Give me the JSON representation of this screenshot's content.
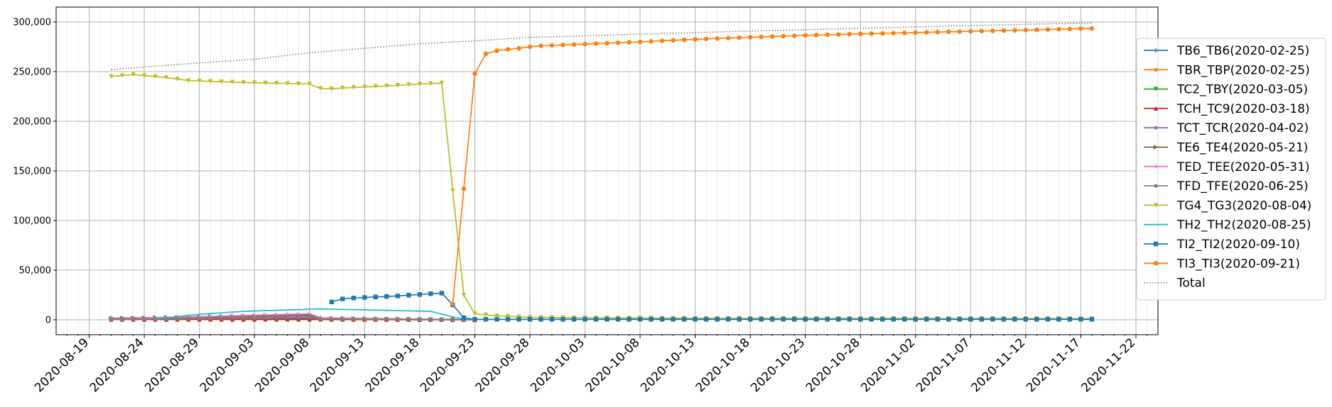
{
  "chart_data": {
    "type": "line",
    "title": "",
    "xlabel": "",
    "ylabel": "",
    "x_range": [
      "2020-08-16",
      "2020-11-24"
    ],
    "ylim": [
      -15000,
      315000
    ],
    "y_ticks": [
      0,
      50000,
      100000,
      150000,
      200000,
      250000,
      300000
    ],
    "y_tick_labels": [
      "0",
      "50,000",
      "100,000",
      "150,000",
      "200,000",
      "250,000",
      "300,000"
    ],
    "x_ticks": [
      "2020-08-19",
      "2020-08-24",
      "2020-08-29",
      "2020-09-03",
      "2020-09-08",
      "2020-09-13",
      "2020-09-18",
      "2020-09-23",
      "2020-09-28",
      "2020-10-03",
      "2020-10-08",
      "2020-10-13",
      "2020-10-18",
      "2020-10-23",
      "2020-10-28",
      "2020-11-02",
      "2020-11-07",
      "2020-11-12",
      "2020-11-17",
      "2020-11-22"
    ],
    "grid": "on",
    "legend_position": "right",
    "series": [
      {
        "name": "TB6_TB6(2020-02-25)",
        "color": "#1f77b4",
        "marker": "plus",
        "start": "2020-08-21",
        "end": "2020-09-23",
        "points": [
          [
            "2020-08-21",
            1500
          ],
          [
            "2020-09-08",
            1500
          ],
          [
            "2020-09-23",
            0
          ]
        ]
      },
      {
        "name": "TBR_TBP(2020-02-25)",
        "color": "#ff7f0e",
        "marker": "point",
        "start": "2020-08-21",
        "end": "2020-09-23",
        "points": [
          [
            "2020-08-21",
            1000
          ],
          [
            "2020-09-23",
            0
          ]
        ]
      },
      {
        "name": "TC2_TBY(2020-03-05)",
        "color": "#2ca02c",
        "marker": "tri_down",
        "start": "2020-08-21",
        "end": "2020-09-23",
        "points": [
          [
            "2020-08-21",
            500
          ],
          [
            "2020-09-23",
            0
          ]
        ]
      },
      {
        "name": "TCH_TC9(2020-03-18)",
        "color": "#d62728",
        "marker": "tri_up",
        "start": "2020-08-21",
        "end": "2020-09-23",
        "points": [
          [
            "2020-08-21",
            300
          ],
          [
            "2020-09-08",
            500
          ],
          [
            "2020-09-23",
            0
          ]
        ]
      },
      {
        "name": "TCT_TCR(2020-04-02)",
        "color": "#9467bd",
        "marker": "diamond",
        "start": "2020-08-21",
        "end": "2020-09-23",
        "points": [
          [
            "2020-08-21",
            1000
          ],
          [
            "2020-09-08",
            4000
          ],
          [
            "2020-09-09",
            1500
          ],
          [
            "2020-09-23",
            0
          ]
        ]
      },
      {
        "name": "TE6_TE4(2020-05-21)",
        "color": "#8c564b",
        "marker": "tri_right",
        "start": "2020-08-21",
        "end": "2020-09-23",
        "points": [
          [
            "2020-08-21",
            1500
          ],
          [
            "2020-09-08",
            5000
          ],
          [
            "2020-09-09",
            1500
          ],
          [
            "2020-09-23",
            0
          ]
        ]
      },
      {
        "name": "TED_TEE(2020-05-31)",
        "color": "#e377c2",
        "marker": "plus",
        "start": "2020-08-21",
        "end": "2020-09-23",
        "points": [
          [
            "2020-08-21",
            1000
          ],
          [
            "2020-09-08",
            6000
          ],
          [
            "2020-09-09",
            2000
          ],
          [
            "2020-09-23",
            0
          ]
        ]
      },
      {
        "name": "TFD_TFE(2020-06-25)",
        "color": "#7f7f7f",
        "marker": "point",
        "start": "2020-08-21",
        "end": "2020-09-23",
        "points": [
          [
            "2020-08-21",
            500
          ],
          [
            "2020-09-08",
            2500
          ],
          [
            "2020-09-09",
            1000
          ],
          [
            "2020-09-23",
            0
          ]
        ]
      },
      {
        "name": "TG4_TG3(2020-08-04)",
        "color": "#bcbd22",
        "marker": "tri_down",
        "start": "2020-08-21",
        "end": "2020-11-18",
        "points": [
          [
            "2020-08-21",
            245000
          ],
          [
            "2020-08-23",
            247000
          ],
          [
            "2020-08-26",
            244000
          ],
          [
            "2020-08-28",
            241000
          ],
          [
            "2020-09-02",
            239000
          ],
          [
            "2020-09-08",
            237500
          ],
          [
            "2020-09-09",
            233000
          ],
          [
            "2020-09-10",
            232500
          ],
          [
            "2020-09-11",
            233500
          ],
          [
            "2020-09-15",
            235500
          ],
          [
            "2020-09-18",
            237500
          ],
          [
            "2020-09-20",
            238500
          ],
          [
            "2020-09-21",
            130000
          ],
          [
            "2020-09-22",
            25000
          ],
          [
            "2020-09-23",
            6000
          ],
          [
            "2020-09-25",
            4000
          ],
          [
            "2020-09-28",
            2500
          ],
          [
            "2020-10-03",
            2000
          ],
          [
            "2020-10-13",
            1500
          ],
          [
            "2020-11-18",
            1200
          ]
        ]
      },
      {
        "name": "TH2_TH2(2020-08-25)",
        "color": "#17becf",
        "marker": "none",
        "start": "2020-08-25",
        "end": "2020-09-23",
        "points": [
          [
            "2020-08-25",
            1000
          ],
          [
            "2020-08-29",
            5500
          ],
          [
            "2020-09-02",
            8500
          ],
          [
            "2020-09-09",
            11000
          ],
          [
            "2020-09-13",
            10000
          ],
          [
            "2020-09-19",
            8500
          ],
          [
            "2020-09-21",
            3000
          ],
          [
            "2020-09-22",
            800
          ],
          [
            "2020-09-23",
            0
          ]
        ]
      },
      {
        "name": "TI2_TI2(2020-09-10)",
        "color": "#1f77b4",
        "marker": "square",
        "start": "2020-09-10",
        "end": "2020-11-18",
        "points": [
          [
            "2020-09-10",
            18000
          ],
          [
            "2020-09-11",
            21000
          ],
          [
            "2020-09-12",
            22000
          ],
          [
            "2020-09-13",
            22500
          ],
          [
            "2020-09-14",
            23000
          ],
          [
            "2020-09-15",
            23500
          ],
          [
            "2020-09-16",
            24000
          ],
          [
            "2020-09-17",
            24800
          ],
          [
            "2020-09-18",
            25500
          ],
          [
            "2020-09-19",
            26300
          ],
          [
            "2020-09-20",
            26800
          ],
          [
            "2020-09-21",
            15000
          ],
          [
            "2020-09-22",
            2000
          ],
          [
            "2020-09-23",
            500
          ],
          [
            "2020-11-18",
            500
          ]
        ]
      },
      {
        "name": "TI3_TI3(2020-09-21)",
        "color": "#ff7f0e",
        "marker": "hexagon",
        "start": "2020-09-21",
        "end": "2020-11-18",
        "points": [
          [
            "2020-09-21",
            16000
          ],
          [
            "2020-09-22",
            132000
          ],
          [
            "2020-09-23",
            248000
          ],
          [
            "2020-09-24",
            268000
          ],
          [
            "2020-09-25",
            271000
          ],
          [
            "2020-09-26",
            272500
          ],
          [
            "2020-09-27",
            273500
          ],
          [
            "2020-09-28",
            275000
          ],
          [
            "2020-09-29",
            276000
          ],
          [
            "2020-10-01",
            276800
          ],
          [
            "2020-10-03",
            277700
          ],
          [
            "2020-10-08",
            280000
          ],
          [
            "2020-10-13",
            282500
          ],
          [
            "2020-10-18",
            284600
          ],
          [
            "2020-10-23",
            286500
          ],
          [
            "2020-10-28",
            288000
          ],
          [
            "2020-11-02",
            289300
          ],
          [
            "2020-11-07",
            290600
          ],
          [
            "2020-11-12",
            291900
          ],
          [
            "2020-11-16",
            293000
          ],
          [
            "2020-11-18",
            293500
          ]
        ]
      },
      {
        "name": "Total",
        "color": "#7f7f7f",
        "marker": "none",
        "style": "dotted",
        "start": "2020-08-21",
        "end": "2020-11-18",
        "points": [
          [
            "2020-08-21",
            252000
          ],
          [
            "2020-08-28",
            258000
          ],
          [
            "2020-09-03",
            262500
          ],
          [
            "2020-09-08",
            269000
          ],
          [
            "2020-09-13",
            273500
          ],
          [
            "2020-09-18",
            278000
          ],
          [
            "2020-09-23",
            281000
          ],
          [
            "2020-09-28",
            284500
          ],
          [
            "2020-10-03",
            286000
          ],
          [
            "2020-10-08",
            287800
          ],
          [
            "2020-10-13",
            289300
          ],
          [
            "2020-10-18",
            290800
          ],
          [
            "2020-10-23",
            292200
          ],
          [
            "2020-10-28",
            293600
          ],
          [
            "2020-11-02",
            295000
          ],
          [
            "2020-11-07",
            296300
          ],
          [
            "2020-11-12",
            297700
          ],
          [
            "2020-11-18",
            299000
          ]
        ]
      }
    ]
  }
}
